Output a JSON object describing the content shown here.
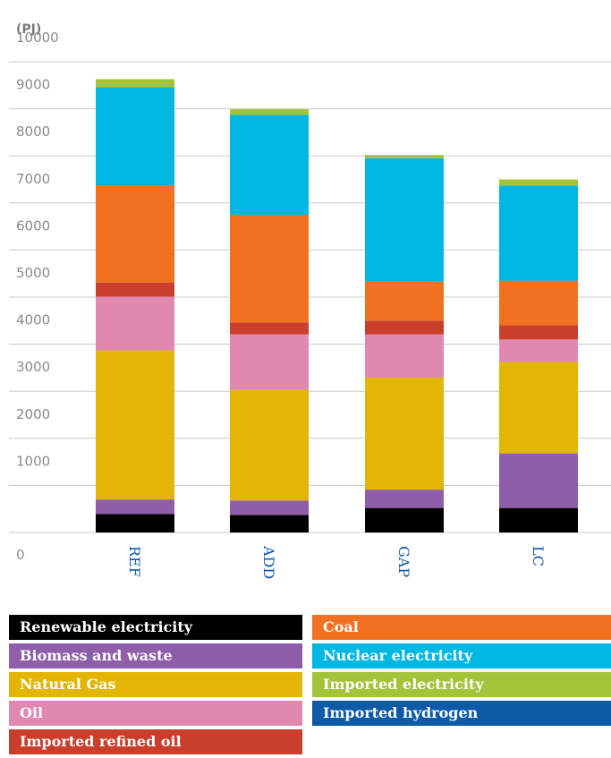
{
  "chart_data": {
    "type": "bar",
    "stacked": true,
    "unit_label": "(PJ)",
    "categories": [
      "REF",
      "ADD",
      "GAP",
      "LC"
    ],
    "yticks": [
      0,
      1000,
      2000,
      3000,
      4000,
      5000,
      6000,
      7000,
      8000,
      9000,
      10000
    ],
    "ylim": [
      0,
      10000
    ],
    "grid": true,
    "series": [
      {
        "name": "Renewable electricity",
        "color": "#000000",
        "values": [
          390,
          370,
          520,
          520
        ]
      },
      {
        "name": "Imported hydrogen",
        "color": "#0d5aa7",
        "values": [
          0,
          0,
          0,
          0
        ]
      },
      {
        "name": "Biomass and waste",
        "color": "#8e5ea8",
        "values": [
          310,
          310,
          390,
          1160
        ]
      },
      {
        "name": "Natural Gas",
        "color": "#e3b505",
        "values": [
          3170,
          2350,
          2380,
          1940
        ]
      },
      {
        "name": "Oil",
        "color": "#e188b1",
        "values": [
          1140,
          1180,
          920,
          480
        ]
      },
      {
        "name": "Imported refined oil",
        "color": "#c93f2c",
        "values": [
          300,
          250,
          290,
          300
        ]
      },
      {
        "name": "Coal",
        "color": "#f07120",
        "values": [
          2050,
          2290,
          830,
          950
        ]
      },
      {
        "name": "Nuclear electricity",
        "color": "#00b7e2",
        "values": [
          2100,
          2120,
          2620,
          2020
        ]
      },
      {
        "name": "Imported electricity",
        "color": "#a3c339",
        "values": [
          170,
          120,
          70,
          130
        ]
      }
    ]
  },
  "legend": {
    "items": [
      {
        "label": "Renewable electricity",
        "color": "#000000",
        "col": 0,
        "row": 0
      },
      {
        "label": "Biomass and waste",
        "color": "#8e5ea8",
        "col": 0,
        "row": 1
      },
      {
        "label": "Natural Gas",
        "color": "#e3b505",
        "col": 0,
        "row": 2
      },
      {
        "label": "Oil",
        "color": "#e188b1",
        "col": 0,
        "row": 3
      },
      {
        "label": "Imported refined oil",
        "color": "#c93f2c",
        "col": 0,
        "row": 4
      },
      {
        "label": "Coal",
        "color": "#f07120",
        "col": 1,
        "row": 0
      },
      {
        "label": "Nuclear electricity",
        "color": "#00b7e2",
        "col": 1,
        "row": 1
      },
      {
        "label": "Imported electricity",
        "color": "#a3c339",
        "col": 1,
        "row": 2
      },
      {
        "label": "Imported hydrogen",
        "color": "#0d5aa7",
        "col": 1,
        "row": 3
      }
    ]
  }
}
